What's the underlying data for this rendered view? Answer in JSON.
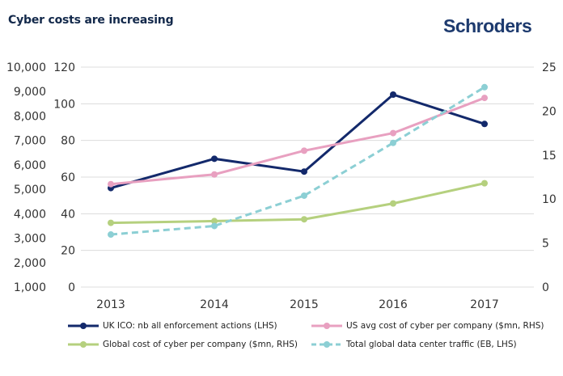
{
  "header": {
    "title": "Cyber costs are increasing",
    "logo": "Schroders"
  },
  "chart_data": {
    "type": "line",
    "title": "Cyber costs are increasing",
    "categories": [
      "2013",
      "2014",
      "2015",
      "2016",
      "2017"
    ],
    "axes": {
      "left_outer": {
        "ticks": [
          "10,000",
          "9,000",
          "8,000",
          "7,000",
          "6,000",
          "5,000",
          "4,000",
          "3,000",
          "2,000",
          "1,000"
        ],
        "range": [
          1000,
          10000
        ]
      },
      "left_inner": {
        "ticks": [
          "120",
          "100",
          "80",
          "60",
          "40",
          "20",
          "0"
        ],
        "range": [
          0,
          120
        ]
      },
      "right": {
        "ticks": [
          "25",
          "20",
          "15",
          "10",
          "5",
          "0"
        ],
        "range": [
          0,
          25
        ]
      }
    },
    "grid": true,
    "legend_position": "bottom",
    "series": [
      {
        "name": "UK ICO: nb all enforcement actions (LHS)",
        "axis": "left_inner",
        "color": "#13296b",
        "dashed": false,
        "values": [
          54,
          70,
          63,
          105,
          89
        ]
      },
      {
        "name": "US avg cost of cyber per company ($mn, RHS)",
        "axis": "right",
        "color": "#e8a0c0",
        "dashed": false,
        "values": [
          11.7,
          12.8,
          15.5,
          17.5,
          21.5
        ]
      },
      {
        "name": "Global cost of cyber per company ($mn, RHS)",
        "axis": "right",
        "color": "#b5d07e",
        "dashed": false,
        "values": [
          7.3,
          7.5,
          7.7,
          9.5,
          11.8
        ]
      },
      {
        "name": "Total global data center traffic (EB, LHS)",
        "axis": "left_outer",
        "color": "#8ccfd4",
        "dashed": true,
        "values": [
          3150,
          3500,
          4740,
          6900,
          9180
        ]
      }
    ]
  }
}
